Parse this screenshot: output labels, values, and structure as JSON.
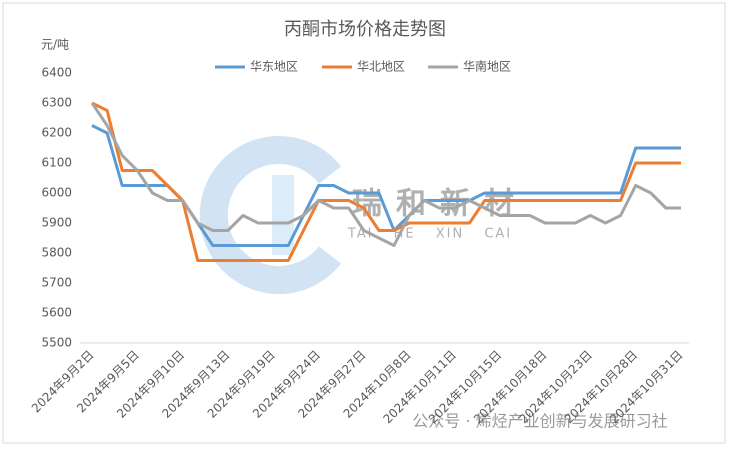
{
  "chart_data": {
    "type": "line",
    "title": "丙酮市场价格走势图",
    "y_label": "元/吨",
    "categories": [
      "2024年9月2日",
      null,
      null,
      "2024年9月5日",
      null,
      null,
      "2024年9月10日",
      null,
      null,
      "2024年9月13日",
      null,
      null,
      "2024年9月19日",
      null,
      null,
      "2024年9月24日",
      null,
      null,
      "2024年9月27日",
      null,
      null,
      "2024年10月8日",
      null,
      null,
      "2024年10月11日",
      null,
      null,
      "2024年10月15日",
      null,
      null,
      "2024年10月18日",
      null,
      null,
      "2024年10月23日",
      null,
      null,
      "2024年10月28日",
      null,
      null,
      "2024年10月31日"
    ],
    "series": [
      {
        "name": "华东地区",
        "color": "#5b9bd5",
        "values": [
          6225,
          6200,
          6025,
          6025,
          6025,
          6025,
          5975,
          5900,
          5825,
          5825,
          5825,
          5825,
          5825,
          5825,
          5925,
          6025,
          6025,
          6000,
          6000,
          6000,
          5875,
          5925,
          5975,
          5975,
          5975,
          5975,
          6000,
          6000,
          6000,
          6000,
          6000,
          6000,
          6000,
          6000,
          6000,
          6000,
          6150,
          6150,
          6150,
          6150
        ]
      },
      {
        "name": "华北地区",
        "color": "#ed7d31",
        "values": [
          6300,
          6275,
          6075,
          6075,
          6075,
          6025,
          5975,
          5775,
          5775,
          5775,
          5775,
          5775,
          5775,
          5775,
          5875,
          5975,
          5975,
          5975,
          5950,
          5875,
          5875,
          5900,
          5900,
          5900,
          5900,
          5900,
          5975,
          5975,
          5975,
          5975,
          5975,
          5975,
          5975,
          5975,
          5975,
          5975,
          6100,
          6100,
          6100,
          6100
        ]
      },
      {
        "name": "华南地区",
        "color": "#a5a5a5",
        "values": [
          6300,
          6225,
          6125,
          6075,
          6000,
          5975,
          5975,
          5900,
          5875,
          5875,
          5925,
          5900,
          5900,
          5900,
          5925,
          5975,
          5950,
          5950,
          5875,
          5850,
          5825,
          5925,
          5975,
          5950,
          5950,
          5975,
          5950,
          5925,
          5925,
          5925,
          5900,
          5900,
          5900,
          5925,
          5900,
          5925,
          6025,
          6000,
          5950,
          5950
        ]
      }
    ],
    "ylim": [
      5500,
      6400
    ],
    "yticks": [
      5500,
      5600,
      5700,
      5800,
      5900,
      6000,
      6100,
      6200,
      6300,
      6400
    ],
    "legend": "top",
    "watermark": {
      "cn": "瑞和新材",
      "en": "TAI HE XIN CAI",
      "source": "公众号 · 烯烃产业创新与发展研习社"
    }
  }
}
